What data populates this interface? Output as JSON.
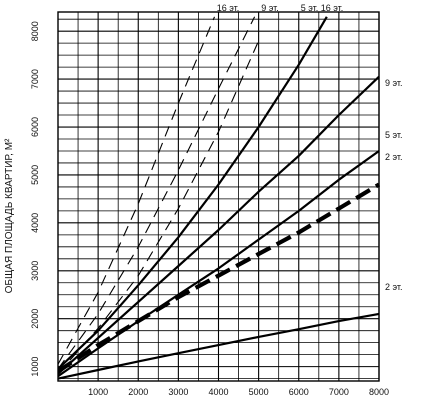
{
  "chart_data": {
    "type": "line",
    "title": "",
    "xlabel": "",
    "ylabel": "ОБЩАЯ ПЛОЩАДЬ КВАРТИР, М²",
    "xlim": [
      0,
      8000
    ],
    "ylim": [
      700,
      8400
    ],
    "grid": true,
    "x_ticks": [
      1000,
      2000,
      3000,
      4000,
      5000,
      6000,
      7000,
      8000
    ],
    "x_tick_labels": [
      "1000",
      "2000",
      "3000",
      "4000",
      "5000",
      "6000",
      "7000",
      "8000"
    ],
    "y_ticks": [
      1000,
      2000,
      3000,
      4000,
      5000,
      6000,
      7000,
      8000
    ],
    "y_tick_labels": [
      "1000",
      "2000",
      "3000",
      "4000",
      "5000",
      "6000",
      "7000",
      "8000"
    ],
    "series": [
      {
        "name": "2 эт.",
        "style": "solid",
        "x": [
          0,
          1000,
          2000,
          3000,
          4000,
          5000,
          6000,
          7000,
          8000
        ],
        "y": [
          750,
          930,
          1110,
          1280,
          1450,
          1620,
          1780,
          1950,
          2100
        ]
      },
      {
        "name": "2 эт.",
        "style": "dashed-bold",
        "x": [
          0,
          1000,
          2000,
          3000,
          4000,
          5000,
          6000,
          7000,
          8000
        ],
        "y": [
          900,
          1450,
          1950,
          2450,
          2900,
          3350,
          3800,
          4300,
          4800
        ]
      },
      {
        "name": "5 эт.",
        "style": "solid",
        "x": [
          0,
          1000,
          2000,
          3000,
          4000,
          5000,
          6000,
          7000,
          8000
        ],
        "y": [
          800,
          1380,
          1950,
          2500,
          3050,
          3650,
          4250,
          4900,
          5500
        ]
      },
      {
        "name": "9 эт.",
        "style": "solid",
        "x": [
          0,
          1000,
          2000,
          3000,
          4000,
          5000,
          6000,
          7000,
          8000
        ],
        "y": [
          850,
          1600,
          2350,
          3100,
          3850,
          4650,
          5400,
          6250,
          7050
        ]
      },
      {
        "name": "16 эт.",
        "style": "solid",
        "x": [
          0,
          1000,
          2000,
          3000,
          4000,
          5000,
          6000,
          6700
        ],
        "y": [
          950,
          1750,
          2700,
          3700,
          4800,
          6000,
          7300,
          8300
        ]
      },
      {
        "name": "5 эт.",
        "style": "dashed",
        "x": [
          0,
          1000,
          2000,
          3000,
          4000,
          5000
        ],
        "y": [
          850,
          1800,
          2900,
          4300,
          5900,
          7800
        ]
      },
      {
        "name": "9 эт.",
        "style": "dashed",
        "x": [
          0,
          1000,
          2000,
          3000,
          4000,
          4900
        ],
        "y": [
          950,
          2100,
          3500,
          5100,
          6800,
          8300
        ]
      },
      {
        "name": "16 эт.",
        "style": "dashed",
        "x": [
          0,
          1000,
          2000,
          3000,
          3900
        ],
        "y": [
          1050,
          2550,
          4400,
          6500,
          8300
        ]
      }
    ],
    "labels": {
      "top": [
        "16 эт.",
        "9 эт.",
        "5 эт.",
        "16 эт."
      ],
      "right": [
        "9 эт.",
        "5 эт.",
        "2 эт.",
        "2 эт."
      ]
    }
  }
}
